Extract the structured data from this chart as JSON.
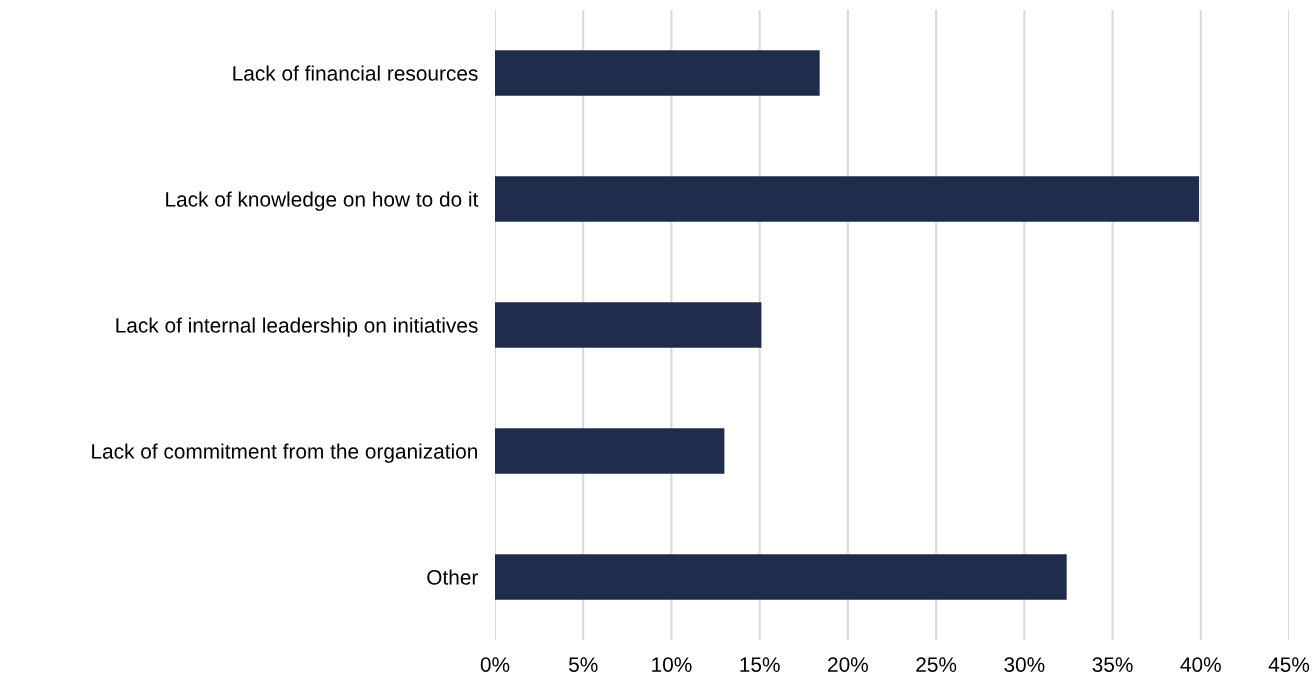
{
  "chart_data": {
    "type": "bar",
    "orientation": "horizontal",
    "categories": [
      "Lack of financial resources",
      "Lack of knowledge on how to do it",
      "Lack of internal leadership on initiatives",
      "Lack of commitment from the organization",
      "Other"
    ],
    "values": [
      18.4,
      39.9,
      15.1,
      13.0,
      32.4
    ],
    "color": "#1f2c4c",
    "xlim": [
      0,
      45
    ],
    "xticks": [
      {
        "value": 0,
        "label": "0%"
      },
      {
        "value": 5,
        "label": "5%"
      },
      {
        "value": 10,
        "label": "10%"
      },
      {
        "value": 15,
        "label": "15%"
      },
      {
        "value": 20,
        "label": "20%"
      },
      {
        "value": 25,
        "label": "25%"
      },
      {
        "value": 30,
        "label": "30%"
      },
      {
        "value": 35,
        "label": "35%"
      },
      {
        "value": 40,
        "label": "40%"
      },
      {
        "value": 45,
        "label": "45%"
      }
    ],
    "grid": "x",
    "legend": false
  }
}
